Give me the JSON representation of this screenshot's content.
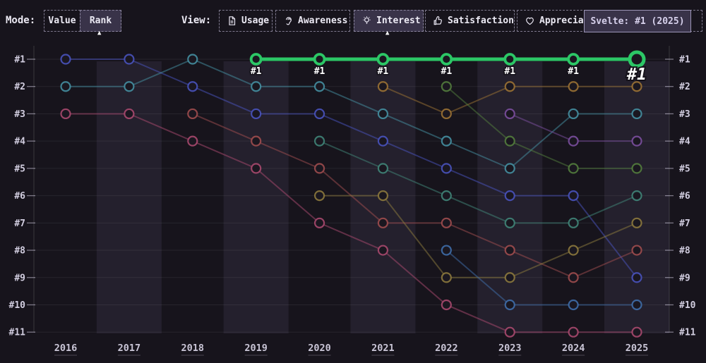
{
  "topbar": {
    "mode": {
      "label": "Mode:",
      "options": [
        {
          "label": "Value",
          "selected": false
        },
        {
          "label": "Rank",
          "selected": true
        }
      ]
    },
    "view": {
      "label": "View:",
      "options": [
        {
          "label": "Usage",
          "icon": "document-icon",
          "selected": false
        },
        {
          "label": "Awareness",
          "icon": "ear-icon",
          "selected": false
        },
        {
          "label": "Interest",
          "icon": "lightbulb-icon",
          "selected": true
        },
        {
          "label": "Satisfaction",
          "icon": "thumbs-up-icon",
          "selected": false
        },
        {
          "label": "Appreciation",
          "icon": "heart-icon",
          "selected": false
        }
      ]
    },
    "tooltip": "Svelte: #1 (2025)"
  },
  "theme": {
    "background": "#17141c",
    "band": "#867aae",
    "grid": "#ffffff",
    "axis": "#ffffff",
    "tick": "#cfcade",
    "rank_label": "#d2cee0",
    "year_label": "#c9c5d6",
    "year_underline": "#bdb8cc",
    "point_fill": "#1a1720",
    "selected_bg": "#393349",
    "tooltip_bg": "#393349",
    "highlight": "#2cc766",
    "highlight_label_fill": "#ffffff",
    "highlight_label_outline": "#15121a"
  },
  "chart_data": {
    "type": "line",
    "subtype": "bump-rank",
    "x_labels": [
      "2016",
      "2017",
      "2018",
      "2019",
      "2020",
      "2021",
      "2022",
      "2023",
      "2024",
      "2025"
    ],
    "rank_labels": [
      "#1",
      "#2",
      "#3",
      "#4",
      "#5",
      "#6",
      "#7",
      "#8",
      "#9",
      "#10",
      "#11"
    ],
    "ylabel": "",
    "xlabel": "",
    "grid": true,
    "highlight_point_label": "#1",
    "series": [
      {
        "id": "indigo",
        "color": "#4a54c0",
        "points": [
          [
            2016,
            1
          ],
          [
            2017,
            1
          ],
          [
            2018,
            2
          ],
          [
            2019,
            3
          ],
          [
            2020,
            3
          ],
          [
            2021,
            4
          ],
          [
            2022,
            5
          ],
          [
            2023,
            6
          ],
          [
            2024,
            6
          ],
          [
            2025,
            9
          ]
        ]
      },
      {
        "id": "teal",
        "color": "#4692a4",
        "points": [
          [
            2016,
            2
          ],
          [
            2017,
            2
          ],
          [
            2018,
            1
          ],
          [
            2019,
            2
          ],
          [
            2020,
            2
          ],
          [
            2021,
            3
          ],
          [
            2022,
            4
          ],
          [
            2023,
            5
          ],
          [
            2024,
            3
          ],
          [
            2025,
            3
          ]
        ]
      },
      {
        "id": "rose",
        "color": "#ac4a70",
        "points": [
          [
            2016,
            3
          ],
          [
            2017,
            3
          ],
          [
            2018,
            4
          ],
          [
            2019,
            5
          ],
          [
            2020,
            7
          ],
          [
            2021,
            8
          ],
          [
            2022,
            10
          ],
          [
            2023,
            11
          ],
          [
            2024,
            11
          ],
          [
            2025,
            11
          ]
        ]
      },
      {
        "id": "red",
        "color": "#a24d4f",
        "points": [
          [
            2018,
            3
          ],
          [
            2019,
            4
          ],
          [
            2020,
            5
          ],
          [
            2021,
            7
          ],
          [
            2022,
            7
          ],
          [
            2023,
            8
          ],
          [
            2024,
            9
          ],
          [
            2025,
            8
          ]
        ]
      },
      {
        "id": "sea-green",
        "color": "#41887a",
        "points": [
          [
            2020,
            4
          ],
          [
            2021,
            5
          ],
          [
            2022,
            6
          ],
          [
            2023,
            7
          ],
          [
            2024,
            7
          ],
          [
            2025,
            6
          ]
        ]
      },
      {
        "id": "olive",
        "color": "#8e7b3d",
        "points": [
          [
            2020,
            6
          ],
          [
            2021,
            6
          ],
          [
            2022,
            9
          ],
          [
            2023,
            9
          ],
          [
            2024,
            8
          ],
          [
            2025,
            7
          ]
        ]
      },
      {
        "id": "brown",
        "color": "#9e7434",
        "points": [
          [
            2021,
            2
          ],
          [
            2022,
            3
          ],
          [
            2023,
            2
          ],
          [
            2024,
            2
          ],
          [
            2025,
            2
          ]
        ]
      },
      {
        "id": "sage",
        "color": "#54803e",
        "points": [
          [
            2022,
            2
          ],
          [
            2023,
            4
          ],
          [
            2024,
            5
          ],
          [
            2025,
            5
          ]
        ]
      },
      {
        "id": "steel-blue",
        "color": "#4070ad",
        "points": [
          [
            2022,
            8
          ],
          [
            2023,
            10
          ],
          [
            2024,
            10
          ],
          [
            2025,
            10
          ]
        ]
      },
      {
        "id": "purple",
        "color": "#7d50a2",
        "points": [
          [
            2023,
            3
          ],
          [
            2024,
            4
          ],
          [
            2025,
            4
          ]
        ]
      },
      {
        "id": "svelte",
        "color": "#2cc766",
        "highlight": true,
        "points": [
          [
            2019,
            1
          ],
          [
            2020,
            1
          ],
          [
            2021,
            1
          ],
          [
            2022,
            1
          ],
          [
            2023,
            1
          ],
          [
            2024,
            1
          ],
          [
            2025,
            1
          ]
        ]
      }
    ]
  }
}
